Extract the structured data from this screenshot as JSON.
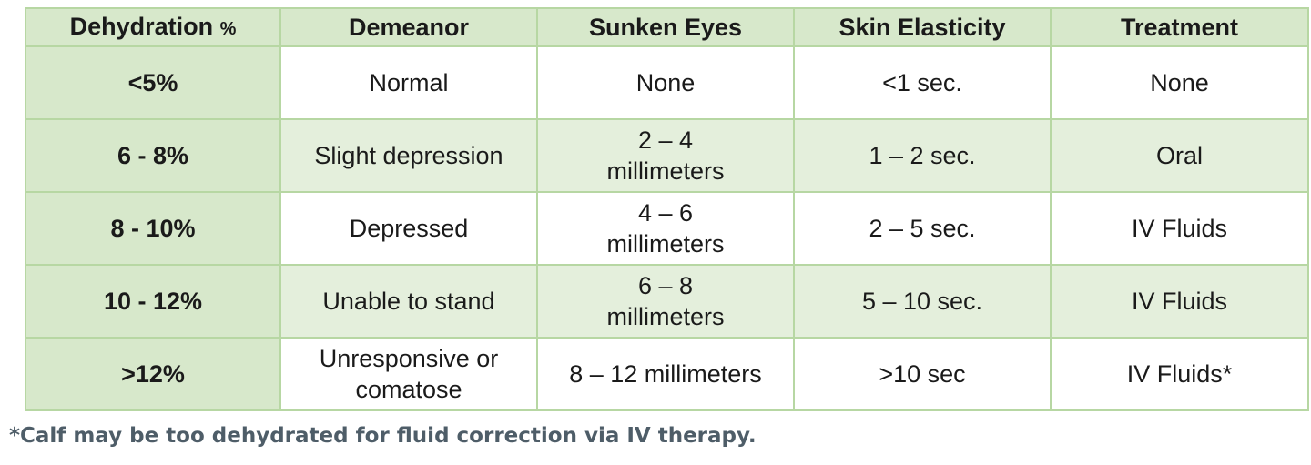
{
  "table": {
    "headers": [
      "Dehydration",
      "Demeanor",
      "Sunken Eyes",
      "Skin Elasticity",
      "Treatment"
    ],
    "header_unit": "%",
    "rows": [
      {
        "dehydration": "<5%",
        "demeanor": "Normal",
        "sunken_eyes": "None",
        "skin_elasticity": "<1 sec.",
        "treatment": "None"
      },
      {
        "dehydration": "6 - 8%",
        "demeanor": "Slight depression",
        "sunken_eyes": "2 – 4 millimeters",
        "skin_elasticity": "1 – 2 sec.",
        "treatment": "Oral"
      },
      {
        "dehydration": "8 - 10%",
        "demeanor": "Depressed",
        "sunken_eyes": "4 – 6 millimeters",
        "skin_elasticity": "2 – 5 sec.",
        "treatment": "IV Fluids"
      },
      {
        "dehydration": "10 - 12%",
        "demeanor": "Unable to stand",
        "sunken_eyes": "6 – 8 millimeters",
        "skin_elasticity": "5 – 10 sec.",
        "treatment": "IV Fluids"
      },
      {
        "dehydration": ">12%",
        "demeanor": "Unresponsive or comatose",
        "sunken_eyes": "8 – 12 millimeters",
        "skin_elasticity": ">10 sec",
        "treatment": "IV Fluids*"
      }
    ]
  },
  "footnote": "*Calf may be too dehydrated for fluid correction via IV therapy.",
  "colors": {
    "header_bg": "#d7e8cb",
    "alt_row_bg": "#e4efdc",
    "border": "#b7d7a3",
    "footnote_text": "#4e5d68"
  }
}
